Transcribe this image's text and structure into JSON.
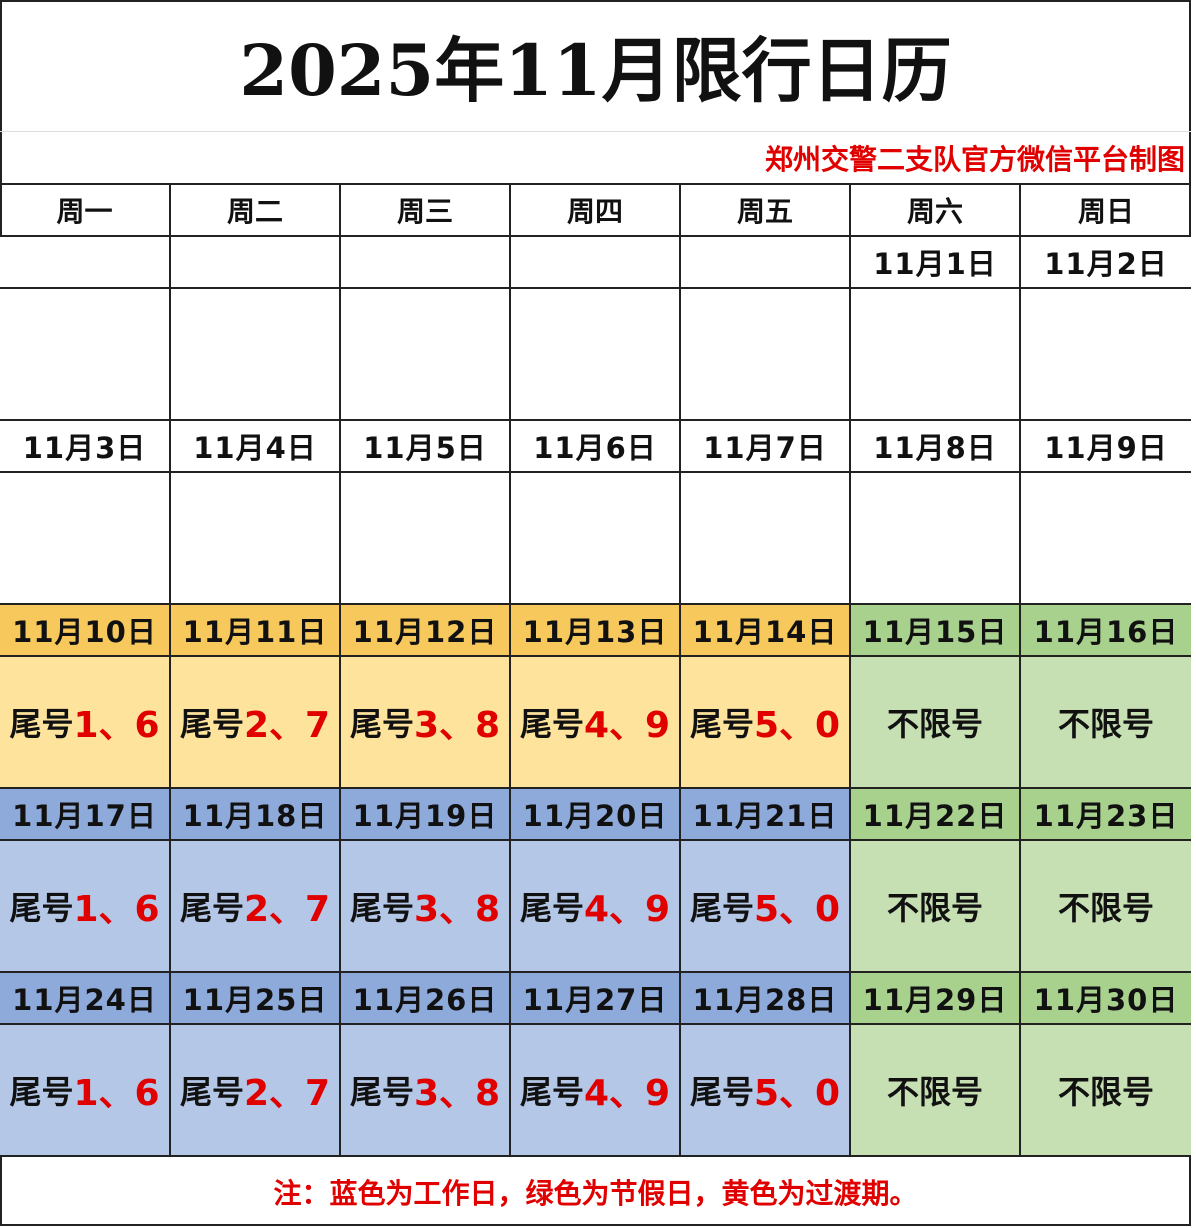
{
  "title": "2025年11月限行日历",
  "subtitle": "郑州交警二支队官方微信平台制图",
  "weekdays": [
    "周一",
    "周二",
    "周三",
    "周四",
    "周五",
    "周六",
    "周日"
  ],
  "colors": {
    "yellow_date": "#f7c95c",
    "yellow_body": "#fde39b",
    "blue_date": "#8eaadb",
    "blue_body": "#b4c7e7",
    "green_date": "#a9d18e",
    "green_body": "#c6e0b4",
    "white": "#ffffff",
    "red_text": "#e00000"
  },
  "weeks": [
    {
      "dates": [
        "",
        "",
        "",
        "",
        "",
        "11月1日",
        "11月2日"
      ],
      "kinds": [
        "white",
        "white",
        "white",
        "white",
        "white",
        "white",
        "white"
      ],
      "cells": [
        null,
        null,
        null,
        null,
        null,
        null,
        null
      ]
    },
    {
      "dates": [
        "11月3日",
        "11月4日",
        "11月5日",
        "11月6日",
        "11月7日",
        "11月8日",
        "11月9日"
      ],
      "kinds": [
        "white",
        "white",
        "white",
        "white",
        "white",
        "white",
        "white"
      ],
      "cells": [
        null,
        null,
        null,
        null,
        null,
        null,
        null
      ]
    },
    {
      "dates": [
        "11月10日",
        "11月11日",
        "11月12日",
        "11月13日",
        "11月14日",
        "11月15日",
        "11月16日"
      ],
      "kinds": [
        "yellow",
        "yellow",
        "yellow",
        "yellow",
        "yellow",
        "green",
        "green"
      ],
      "cells": [
        {
          "prefix": "尾号",
          "digits": "1、6"
        },
        {
          "prefix": "尾号",
          "digits": "2、7"
        },
        {
          "prefix": "尾号",
          "digits": "3、8"
        },
        {
          "prefix": "尾号",
          "digits": "4、9"
        },
        {
          "prefix": "尾号",
          "digits": "5、0"
        },
        {
          "text": "不限号"
        },
        {
          "text": "不限号"
        }
      ]
    },
    {
      "dates": [
        "11月17日",
        "11月18日",
        "11月19日",
        "11月20日",
        "11月21日",
        "11月22日",
        "11月23日"
      ],
      "kinds": [
        "blue",
        "blue",
        "blue",
        "blue",
        "blue",
        "green",
        "green"
      ],
      "cells": [
        {
          "prefix": "尾号",
          "digits": "1、6"
        },
        {
          "prefix": "尾号",
          "digits": "2、7"
        },
        {
          "prefix": "尾号",
          "digits": "3、8"
        },
        {
          "prefix": "尾号",
          "digits": "4、9"
        },
        {
          "prefix": "尾号",
          "digits": "5、0"
        },
        {
          "text": "不限号"
        },
        {
          "text": "不限号"
        }
      ]
    },
    {
      "dates": [
        "11月24日",
        "11月25日",
        "11月26日",
        "11月27日",
        "11月28日",
        "11月29日",
        "11月30日"
      ],
      "kinds": [
        "blue",
        "blue",
        "blue",
        "blue",
        "blue",
        "green",
        "green"
      ],
      "cells": [
        {
          "prefix": "尾号",
          "digits": "1、6"
        },
        {
          "prefix": "尾号",
          "digits": "2、7"
        },
        {
          "prefix": "尾号",
          "digits": "3、8"
        },
        {
          "prefix": "尾号",
          "digits": "4、9"
        },
        {
          "prefix": "尾号",
          "digits": "5、0"
        },
        {
          "text": "不限号"
        },
        {
          "text": "不限号"
        }
      ]
    }
  ],
  "footer": "注：蓝色为工作日，绿色为节假日，黄色为过渡期。"
}
